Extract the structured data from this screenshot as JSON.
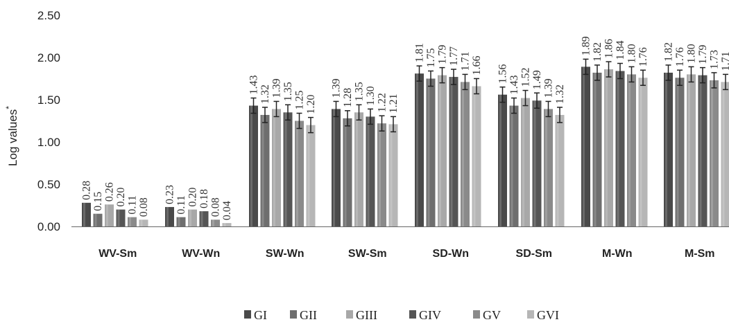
{
  "chart_data": {
    "type": "bar",
    "title": "",
    "xlabel": "",
    "ylabel": "Log values",
    "ylabel_superscript": "*",
    "ylim": [
      0,
      2.5
    ],
    "yticks": [
      "0.00",
      "0.50",
      "1.00",
      "1.50",
      "2.00",
      "2.50"
    ],
    "grid": false,
    "legend_position": "bottom",
    "categories": [
      "WV-Sm",
      "WV-Wn",
      "SW-Wn",
      "SW-Sm",
      "SD-Wn",
      "SD-Sm",
      "M-Wn",
      "M-Sm"
    ],
    "series": [
      {
        "name": "GI",
        "color": "#4a4a4a",
        "values": [
          0.28,
          0.23,
          1.43,
          1.39,
          1.81,
          1.56,
          1.89,
          1.82
        ],
        "labels": [
          "0.28",
          "0.23",
          "1.43",
          "1.39",
          "1.81",
          "1.56",
          "1.89",
          "1.82"
        ]
      },
      {
        "name": "GII",
        "color": "#6e6e6e",
        "values": [
          0.15,
          0.11,
          1.32,
          1.28,
          1.75,
          1.43,
          1.82,
          1.76
        ],
        "labels": [
          "0.15",
          "0.11",
          "1.32",
          "1.28",
          "1.75",
          "1.43",
          "1.82",
          "1.76"
        ]
      },
      {
        "name": "GIII",
        "color": "#a8a8a8",
        "values": [
          0.26,
          0.2,
          1.39,
          1.35,
          1.79,
          1.52,
          1.86,
          1.8
        ],
        "labels": [
          "0.26",
          "0.20",
          "1.39",
          "1.35",
          "1.79",
          "1.52",
          "1.86",
          "1.80"
        ]
      },
      {
        "name": "GIV",
        "color": "#555555",
        "values": [
          0.2,
          0.18,
          1.35,
          1.3,
          1.77,
          1.49,
          1.84,
          1.79
        ],
        "labels": [
          "0.20",
          "0.18",
          "1.35",
          "1.30",
          "1.77",
          "1.49",
          "1.84",
          "1.79"
        ]
      },
      {
        "name": "GV",
        "color": "#8a8a8a",
        "values": [
          0.11,
          0.08,
          1.25,
          1.22,
          1.71,
          1.39,
          1.8,
          1.73
        ],
        "labels": [
          "0.11",
          "0.08",
          "1.25",
          "1.22",
          "1.71",
          "1.39",
          "1.80",
          "1.73"
        ]
      },
      {
        "name": "GVI",
        "color": "#b6b6b6",
        "values": [
          0.08,
          0.04,
          1.2,
          1.21,
          1.66,
          1.32,
          1.76,
          1.71
        ],
        "labels": [
          "0.08",
          "0.04",
          "1.20",
          "1.21",
          "1.66",
          "1.32",
          "1.76",
          "1.71"
        ]
      }
    ]
  }
}
